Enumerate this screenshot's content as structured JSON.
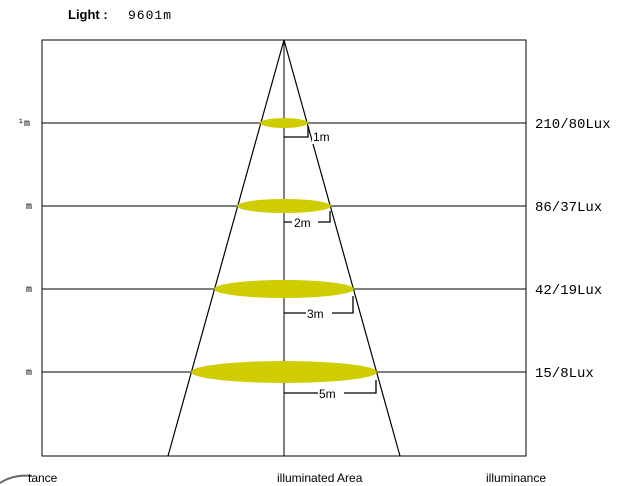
{
  "title": {
    "label": "Light :",
    "value": "9601m"
  },
  "rows": [
    {
      "distance": "¹m",
      "span": "1m",
      "illuminance": "210/80Lux"
    },
    {
      "distance": "m",
      "span": "2m",
      "illuminance": "86/37Lux"
    },
    {
      "distance": "m",
      "span": "3m",
      "illuminance": "42/19Lux"
    },
    {
      "distance": "m",
      "span": "5m",
      "illuminance": "15/8Lux"
    }
  ],
  "footer": {
    "distance": "tance",
    "area": "illuminated Area",
    "illuminance": "illuminance"
  },
  "colors": {
    "spot": "#cfcc00",
    "line": "#000000"
  }
}
